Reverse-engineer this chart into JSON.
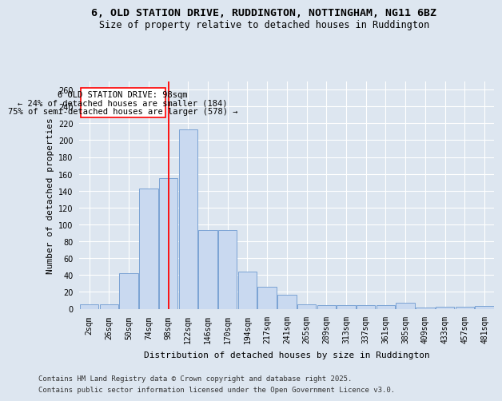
{
  "title_line1": "6, OLD STATION DRIVE, RUDDINGTON, NOTTINGHAM, NG11 6BZ",
  "title_line2": "Size of property relative to detached houses in Ruddington",
  "xlabel": "Distribution of detached houses by size in Ruddington",
  "ylabel": "Number of detached properties",
  "categories": [
    "2sqm",
    "26sqm",
    "50sqm",
    "74sqm",
    "98sqm",
    "122sqm",
    "146sqm",
    "170sqm",
    "194sqm",
    "217sqm",
    "241sqm",
    "265sqm",
    "289sqm",
    "313sqm",
    "337sqm",
    "361sqm",
    "385sqm",
    "409sqm",
    "433sqm",
    "457sqm",
    "481sqm"
  ],
  "values": [
    5,
    5,
    42,
    143,
    155,
    213,
    93,
    93,
    44,
    26,
    17,
    5,
    4,
    4,
    4,
    4,
    7,
    1,
    2,
    2,
    3
  ],
  "bar_color": "#c9d9f0",
  "bar_edge_color": "#7ba3d4",
  "red_line_index": 4,
  "annotation_title": "6 OLD STATION DRIVE: 98sqm",
  "annotation_line2": "← 24% of detached houses are smaller (184)",
  "annotation_line3": "75% of semi-detached houses are larger (578) →",
  "ylim": [
    0,
    270
  ],
  "yticks": [
    0,
    20,
    40,
    60,
    80,
    100,
    120,
    140,
    160,
    180,
    200,
    220,
    240,
    260
  ],
  "background_color": "#dde6f0",
  "plot_bg_color": "#dde6f0",
  "grid_color": "#c0cfe0",
  "footer_line1": "Contains HM Land Registry data © Crown copyright and database right 2025.",
  "footer_line2": "Contains public sector information licensed under the Open Government Licence v3.0.",
  "title_fontsize": 9.5,
  "subtitle_fontsize": 8.5,
  "ylabel_fontsize": 8,
  "xlabel_fontsize": 8,
  "tick_fontsize": 7,
  "annotation_fontsize": 7.5,
  "footer_fontsize": 6.5
}
